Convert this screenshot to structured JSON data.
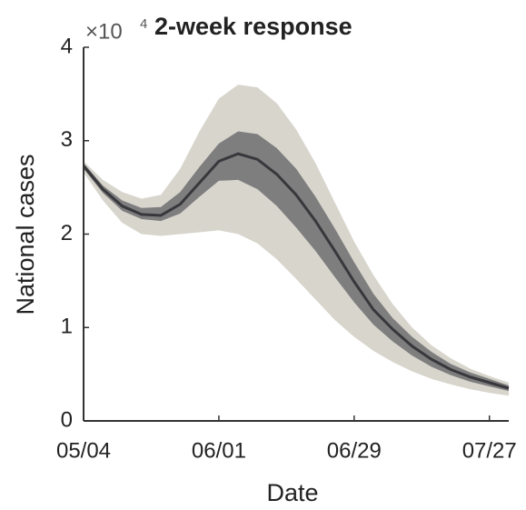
{
  "chart_data": {
    "type": "line-band",
    "title": "2-week response",
    "y_multiplier": "×10",
    "y_multiplier_exponent": "4",
    "xlabel": "Date",
    "ylabel": "National cases",
    "x": [
      "05/04",
      "05/08",
      "05/12",
      "05/16",
      "05/20",
      "05/24",
      "05/28",
      "06/01",
      "06/05",
      "06/09",
      "06/13",
      "06/17",
      "06/21",
      "06/25",
      "06/29",
      "07/03",
      "07/07",
      "07/11",
      "07/15",
      "07/19",
      "07/23",
      "07/27",
      "07/31"
    ],
    "xlim": [
      "05/04",
      "07/31"
    ],
    "xticks": [
      "05/04",
      "06/01",
      "06/29",
      "07/27"
    ],
    "ylim": [
      0,
      4
    ],
    "yticks": [
      0,
      1,
      2,
      3,
      4
    ],
    "bands": [
      {
        "color": "#d7d5cc",
        "lower": [
          2.66,
          2.36,
          2.12,
          2.0,
          1.98,
          2.0,
          2.02,
          2.04,
          2.0,
          1.9,
          1.73,
          1.52,
          1.3,
          1.08,
          0.9,
          0.75,
          0.63,
          0.53,
          0.45,
          0.39,
          0.34,
          0.3,
          0.27
        ],
        "upper": [
          2.78,
          2.58,
          2.45,
          2.38,
          2.42,
          2.7,
          3.1,
          3.45,
          3.6,
          3.57,
          3.4,
          3.12,
          2.76,
          2.34,
          1.92,
          1.56,
          1.25,
          1.0,
          0.81,
          0.67,
          0.56,
          0.48,
          0.41
        ]
      },
      {
        "color": "#7f7e7f",
        "lower": [
          2.7,
          2.44,
          2.25,
          2.16,
          2.14,
          2.22,
          2.4,
          2.57,
          2.58,
          2.48,
          2.3,
          2.07,
          1.82,
          1.54,
          1.27,
          1.03,
          0.85,
          0.7,
          0.58,
          0.49,
          0.42,
          0.37,
          0.32
        ],
        "upper": [
          2.76,
          2.52,
          2.36,
          2.28,
          2.29,
          2.45,
          2.72,
          2.97,
          3.1,
          3.07,
          2.92,
          2.7,
          2.4,
          2.06,
          1.7,
          1.36,
          1.1,
          0.9,
          0.74,
          0.61,
          0.52,
          0.45,
          0.38
        ]
      }
    ],
    "series": [
      {
        "color": "#38373b",
        "values": [
          2.73,
          2.48,
          2.3,
          2.21,
          2.2,
          2.32,
          2.55,
          2.78,
          2.86,
          2.8,
          2.64,
          2.42,
          2.14,
          1.82,
          1.49,
          1.19,
          0.98,
          0.8,
          0.66,
          0.55,
          0.47,
          0.41,
          0.35
        ]
      }
    ]
  }
}
